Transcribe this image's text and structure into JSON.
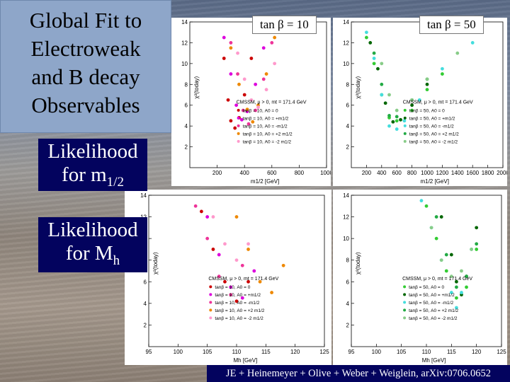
{
  "title": [
    "Global Fit to",
    "Electroweak",
    "and B decay",
    "Observables"
  ],
  "badges": {
    "tb10": "tan β = 10",
    "tb50": "tan β = 50"
  },
  "labels": {
    "m12": {
      "text": "Likelihood",
      "line2": "for m",
      "sub": "1/2"
    },
    "mh": {
      "text": "Likelihood",
      "line2": "for M",
      "sub": "h"
    }
  },
  "citation": "JE + Heinemeyer + Olive + Weber + Weiglein, arXiv:0706.0652",
  "colors": {
    "navy": "#03035e",
    "title_bg": "#8ea6c9"
  },
  "chart_data": [
    {
      "type": "scatter",
      "ylabel": "χ²(today)",
      "xlabel": "m1/2 [GeV]",
      "xlim": [
        0,
        1000
      ],
      "ylim": [
        0,
        14
      ],
      "xticks": [
        "200",
        "400",
        "600",
        "800",
        "1000"
      ],
      "yticks": [
        "2",
        "4",
        "6",
        "8",
        "10",
        "12",
        "14"
      ],
      "legend_title": "CMSSM, μ > 0, mt = 171.4 GeV",
      "legend": [
        "tanβ = 10, A0 = 0",
        "tanβ = 10, A0 = +m1/2",
        "tanβ = 10, A0 = -m1/2",
        "tanβ = 10, A0 = +2 m1/2",
        "tanβ = 10, A0 = -2 m1/2"
      ],
      "series": [
        {
          "name": "tanβ = 10, A0 = 0",
          "color": "#cc0000",
          "x": [
            250,
            280,
            300,
            330,
            360,
            400,
            450
          ],
          "y": [
            10.5,
            6.5,
            4.5,
            3.8,
            4.8,
            7.0,
            10.5
          ]
        },
        {
          "name": "tanβ = 10, A0 = +m1/2",
          "color": "#dd00dd",
          "x": [
            250,
            300,
            340,
            380,
            420,
            480,
            540
          ],
          "y": [
            12.5,
            9.0,
            6.0,
            4.6,
            5.4,
            8.0,
            11.5
          ]
        },
        {
          "name": "tanβ = 10, A0 = -m1/2",
          "color": "#ee3399",
          "x": [
            300,
            350,
            390,
            430,
            480,
            540,
            600
          ],
          "y": [
            12.0,
            9.0,
            5.5,
            4.2,
            5.5,
            8.5,
            12.0
          ]
        },
        {
          "name": "tanβ = 10, A0 = +2 m1/2",
          "color": "#ee8800",
          "x": [
            300,
            360,
            420,
            460,
            500,
            560,
            620
          ],
          "y": [
            11.5,
            8.0,
            5.6,
            4.4,
            6.0,
            9.0,
            12.5
          ]
        },
        {
          "name": "tanβ = 10, A0 = -2 m1/2",
          "color": "#ff99cc",
          "x": [
            350,
            400,
            450,
            500,
            560,
            620
          ],
          "y": [
            11.0,
            8.5,
            6.5,
            5.8,
            7.5,
            10.0
          ]
        }
      ]
    },
    {
      "type": "scatter",
      "ylabel": "χ²(today)",
      "xlabel": "m1/2 [GeV]",
      "xlim": [
        0,
        2000
      ],
      "ylim": [
        0,
        14
      ],
      "xticks": [
        "200",
        "400",
        "600",
        "800",
        "1000",
        "1200",
        "1400",
        "1600",
        "1800",
        "2000"
      ],
      "yticks": [
        "2",
        "4",
        "6",
        "8",
        "10",
        "12",
        "14"
      ],
      "legend_title": "CMSSM, μ > 0, mt = 171.4 GeV",
      "legend": [
        "tanβ = 50, A0 = 0",
        "tanβ = 50, A0 = +m1/2",
        "tanβ = 50, A0 = -m1/2",
        "tanβ = 50, A0 = +2 m1/2",
        "tanβ = 50, A0 = -2 m1/2"
      ],
      "series": [
        {
          "name": "tanβ = 50, A0 = 0",
          "color": "#33cc33",
          "x": [
            200,
            300,
            400,
            500,
            600,
            800,
            1000,
            1200
          ],
          "y": [
            12.5,
            10.0,
            7.0,
            4.8,
            4.5,
            5.5,
            7.5,
            9.0
          ]
        },
        {
          "name": "tanβ = 50, A0 = +m1/2",
          "color": "#006600",
          "x": [
            250,
            350,
            450,
            550,
            650,
            800,
            1000
          ],
          "y": [
            12.0,
            9.5,
            6.2,
            4.4,
            4.6,
            6.0,
            8.0
          ]
        },
        {
          "name": "tanβ = 50, A0 = -m1/2",
          "color": "#44dddd",
          "x": [
            200,
            300,
            400,
            500,
            600,
            700,
            900,
            1200,
            1600
          ],
          "y": [
            13.0,
            10.5,
            7.0,
            4.0,
            3.7,
            4.5,
            6.5,
            9.5,
            12.0
          ]
        },
        {
          "name": "tanβ = 50, A0 = +2 m1/2",
          "color": "#22aa44",
          "x": [
            300,
            400,
            500,
            600,
            800,
            1000
          ],
          "y": [
            11.0,
            8.0,
            5.0,
            4.9,
            6.5,
            8.5
          ]
        },
        {
          "name": "tanβ = 50, A0 = -2 m1/2",
          "color": "#88cc88",
          "x": [
            400,
            500,
            600,
            800,
            1000,
            1400
          ],
          "y": [
            10.0,
            7.0,
            5.5,
            6.5,
            8.5,
            11.0
          ]
        }
      ]
    },
    {
      "type": "scatter",
      "ylabel": "χ²(today)",
      "xlabel": "Mh [GeV]",
      "xlim": [
        95,
        125
      ],
      "ylim": [
        0,
        14
      ],
      "xticks": [
        "95",
        "100",
        "105",
        "110",
        "115",
        "120",
        "125"
      ],
      "yticks": [
        "2",
        "4",
        "6",
        "8",
        "10",
        "12",
        "14"
      ],
      "legend_title": "CMSSM, μ > 0, mt = 171.4 GeV",
      "legend": [
        "tanβ = 10, A0 = 0",
        "tanβ = 10, A0 = +m1/2",
        "tanβ = 10, A0 = -m1/2",
        "tanβ = 10, A0 = +2 m1/2",
        "tanβ = 10, A0 = -2 m1/2"
      ],
      "series": [
        {
          "name": "tanβ = 10, A0 = 0",
          "color": "#cc0000",
          "x": [
            104,
            106,
            108,
            110,
            112
          ],
          "y": [
            12.5,
            9.0,
            6.0,
            4.2,
            6.0
          ]
        },
        {
          "name": "tanβ = 10, A0 = +m1/2",
          "color": "#dd00dd",
          "x": [
            105,
            107,
            109,
            111,
            113
          ],
          "y": [
            12.0,
            8.5,
            5.5,
            4.5,
            7.0
          ]
        },
        {
          "name": "tanβ = 10, A0 = -m1/2",
          "color": "#ee3399",
          "x": [
            103,
            105,
            107,
            109,
            111
          ],
          "y": [
            13.0,
            10.0,
            6.5,
            4.8,
            7.5
          ]
        },
        {
          "name": "tanβ = 10, A0 = +2 m1/2",
          "color": "#ee8800",
          "x": [
            110,
            112,
            114,
            116,
            118
          ],
          "y": [
            12.0,
            9.0,
            6.0,
            5.0,
            7.5
          ]
        },
        {
          "name": "tanβ = 10, A0 = -2 m1/2",
          "color": "#ff99cc",
          "x": [
            106,
            108,
            110,
            112
          ],
          "y": [
            12.0,
            9.5,
            8.0,
            9.5
          ]
        }
      ]
    },
    {
      "type": "scatter",
      "ylabel": "χ²(today)",
      "xlabel": "Mh [GeV]",
      "xlim": [
        95,
        125
      ],
      "ylim": [
        0,
        14
      ],
      "xticks": [
        "95",
        "100",
        "105",
        "110",
        "115",
        "120",
        "125"
      ],
      "yticks": [
        "2",
        "4",
        "6",
        "8",
        "10",
        "12",
        "14"
      ],
      "legend_title": "CMSSM, μ > 0, mt = 171.4 GeV",
      "legend": [
        "tanβ = 50, A0 = 0",
        "tanβ = 50, A0 = +m1/2",
        "tanβ = 50, A0 = -m1/2",
        "tanβ = 50, A0 = +2 m1/2",
        "tanβ = 50, A0 = -2 m1/2"
      ],
      "series": [
        {
          "name": "tanβ = 50, A0 = 0",
          "color": "#33cc33",
          "x": [
            110,
            112,
            114,
            116,
            118,
            120
          ],
          "y": [
            13.0,
            10.0,
            7.0,
            4.5,
            5.5,
            9.0
          ]
        },
        {
          "name": "tanβ = 50, A0 = +m1/2",
          "color": "#006600",
          "x": [
            113,
            115,
            116,
            117,
            118,
            120
          ],
          "y": [
            12.0,
            8.5,
            6.0,
            4.8,
            6.5,
            11.0
          ]
        },
        {
          "name": "tanβ = 50, A0 = -m1/2",
          "color": "#44dddd",
          "x": [
            109,
            111,
            113,
            115,
            116,
            117,
            119
          ],
          "y": [
            13.5,
            11.0,
            8.0,
            5.0,
            3.6,
            5.0,
            9.0
          ]
        },
        {
          "name": "tanβ = 50, A0 = +2 m1/2",
          "color": "#22aa44",
          "x": [
            112,
            114,
            116,
            118,
            120
          ],
          "y": [
            12.0,
            8.5,
            5.5,
            6.5,
            9.5
          ]
        },
        {
          "name": "tanβ = 50, A0 = -2 m1/2",
          "color": "#88cc88",
          "x": [
            111,
            113,
            115,
            117,
            119
          ],
          "y": [
            11.0,
            8.0,
            6.5,
            7.0,
            9.0
          ]
        }
      ]
    }
  ]
}
